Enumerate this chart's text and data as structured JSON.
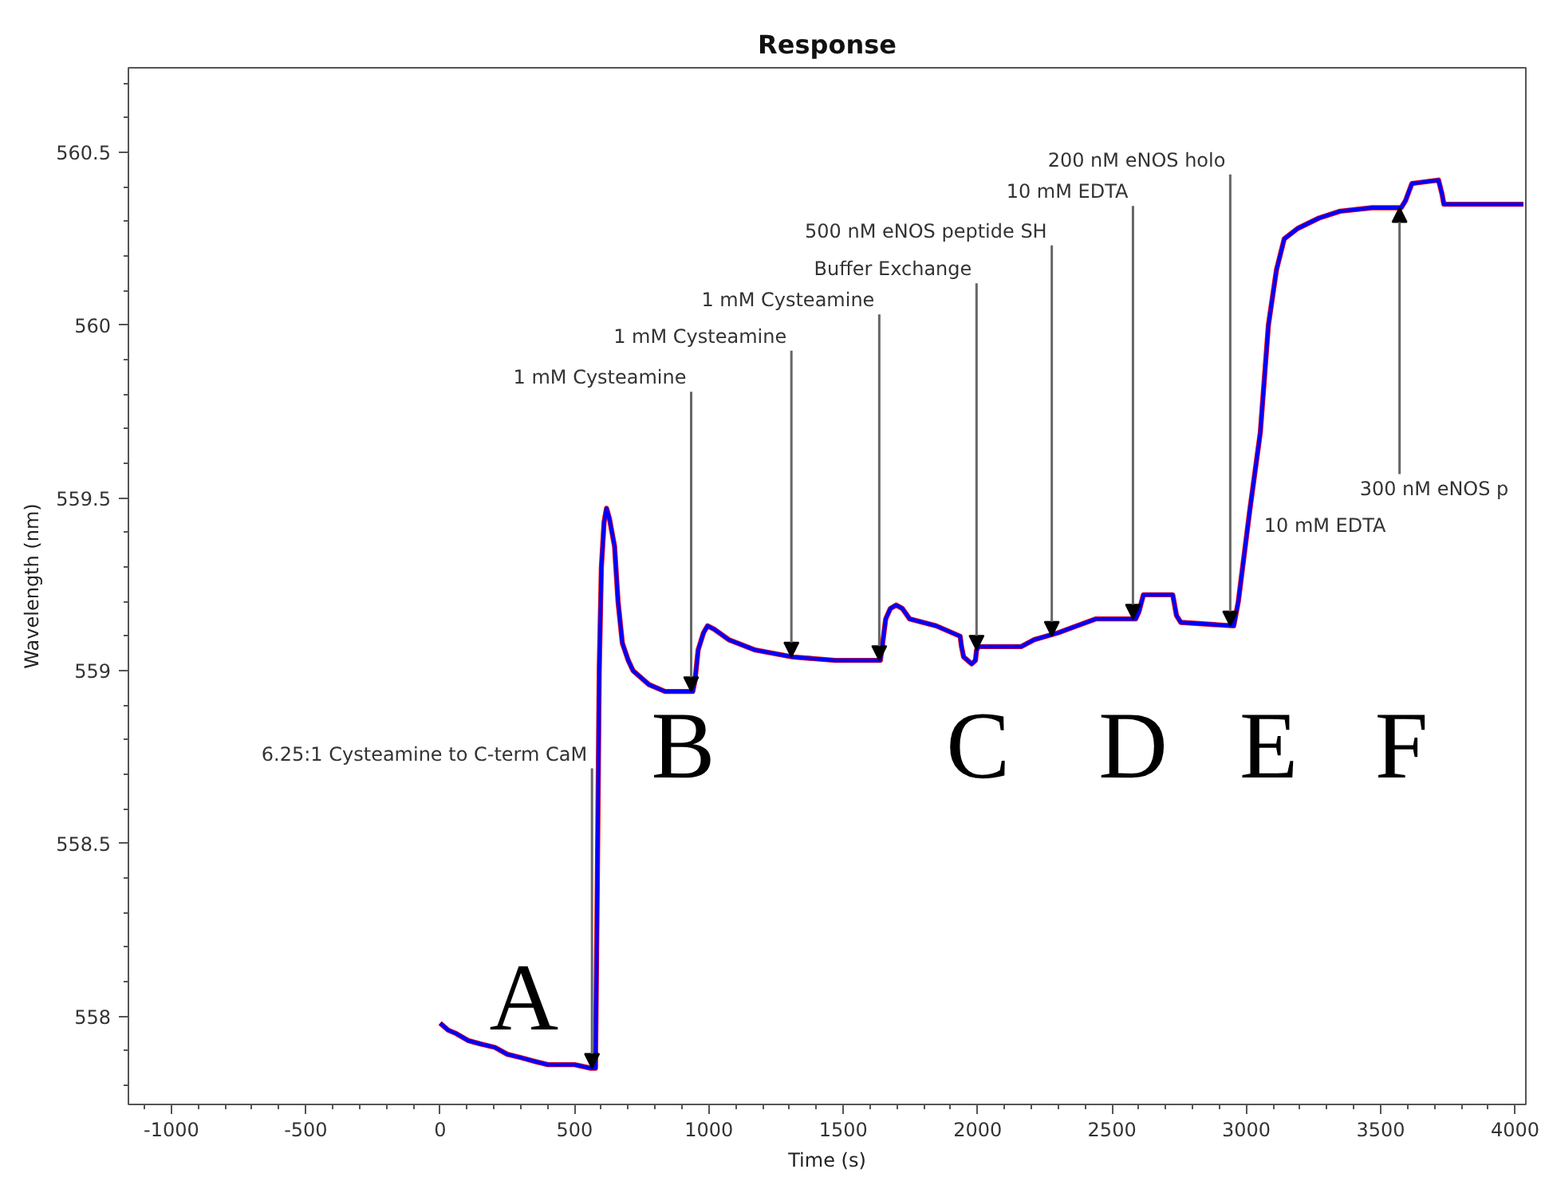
{
  "chart_data": {
    "type": "line",
    "title": "Response",
    "xlabel": "Time (s)",
    "ylabel": "Wavelength (nm)",
    "x": [
      0,
      30,
      60,
      104,
      150,
      204,
      250,
      303,
      350,
      401,
      500,
      560,
      578,
      585,
      592,
      600,
      610,
      619,
      630,
      649,
      662,
      678,
      700,
      718,
      777,
      837,
      940,
      948,
      960,
      980,
      995,
      1020,
      1074,
      1173,
      1312,
      1470,
      1638,
      1645,
      1658,
      1675,
      1697,
      1720,
      1747,
      1846,
      1935,
      1940,
      1948,
      1978,
      1992,
      1996,
      2004,
      2162,
      2211,
      2300,
      2370,
      2439,
      2588,
      2600,
      2617,
      2726,
      2740,
      2756,
      2953,
      2970,
      3012,
      3052,
      3082,
      3112,
      3141,
      3191,
      3270,
      3349,
      3468,
      3576,
      3592,
      3616,
      3715,
      3728,
      3735,
      3900,
      4031
    ],
    "series": [
      {
        "color": "#ff0000",
        "values": [
          557.98,
          557.96,
          557.95,
          557.93,
          557.92,
          557.91,
          557.89,
          557.88,
          557.87,
          557.86,
          557.86,
          557.85,
          557.85,
          558.4,
          559.0,
          559.3,
          559.43,
          559.47,
          559.44,
          559.36,
          559.2,
          559.08,
          559.03,
          559.0,
          558.96,
          558.94,
          558.94,
          558.97,
          559.06,
          559.11,
          559.13,
          559.12,
          559.09,
          559.06,
          559.04,
          559.03,
          559.03,
          559.07,
          559.15,
          559.18,
          559.19,
          559.18,
          559.15,
          559.13,
          559.1,
          559.07,
          559.04,
          559.02,
          559.03,
          559.06,
          559.07,
          559.07,
          559.09,
          559.11,
          559.13,
          559.15,
          559.15,
          559.17,
          559.22,
          559.22,
          559.16,
          559.14,
          559.13,
          559.2,
          559.46,
          559.69,
          560.0,
          560.16,
          560.25,
          560.28,
          560.31,
          560.33,
          560.34,
          560.34,
          560.36,
          560.41,
          560.42,
          560.38,
          560.35,
          560.35,
          560.35
        ]
      },
      {
        "color": "#0000ff",
        "values": [
          557.98,
          557.96,
          557.95,
          557.93,
          557.92,
          557.91,
          557.89,
          557.88,
          557.87,
          557.86,
          557.86,
          557.85,
          557.85,
          558.4,
          559.0,
          559.3,
          559.43,
          559.47,
          559.44,
          559.36,
          559.2,
          559.08,
          559.03,
          559.0,
          558.96,
          558.94,
          558.94,
          558.97,
          559.06,
          559.11,
          559.13,
          559.12,
          559.09,
          559.06,
          559.04,
          559.03,
          559.03,
          559.07,
          559.15,
          559.18,
          559.19,
          559.18,
          559.15,
          559.13,
          559.1,
          559.07,
          559.04,
          559.02,
          559.03,
          559.06,
          559.07,
          559.07,
          559.09,
          559.11,
          559.13,
          559.15,
          559.15,
          559.17,
          559.22,
          559.22,
          559.16,
          559.14,
          559.13,
          559.2,
          559.46,
          559.69,
          560.0,
          560.16,
          560.25,
          560.28,
          560.31,
          560.33,
          560.34,
          560.34,
          560.36,
          560.41,
          560.42,
          560.38,
          560.35,
          560.35,
          560.35
        ]
      }
    ],
    "xlim": [
      -1160,
      4040
    ],
    "ylim": [
      557.745,
      560.745
    ],
    "xticks": [
      {
        "value": -1100,
        "label": null
      },
      -1000,
      {
        "value": -900,
        "label": null
      },
      {
        "value": -800,
        "label": null
      },
      {
        "value": -700,
        "label": null
      },
      {
        "value": -600,
        "label": null
      },
      -500,
      {
        "value": -400,
        "label": null
      },
      {
        "value": -300,
        "label": null
      },
      {
        "value": -200,
        "label": null
      },
      {
        "value": -100,
        "label": null
      },
      0,
      {
        "value": 100,
        "label": null
      },
      {
        "value": 200,
        "label": null
      },
      {
        "value": 300,
        "label": null
      },
      {
        "value": 400,
        "label": null
      },
      500,
      {
        "value": 600,
        "label": null
      },
      {
        "value": 700,
        "label": null
      },
      {
        "value": 800,
        "label": null
      },
      {
        "value": 900,
        "label": null
      },
      1000,
      {
        "value": 1100,
        "label": null
      },
      {
        "value": 1200,
        "label": null
      },
      {
        "value": 1300,
        "label": null
      },
      {
        "value": 1400,
        "label": null
      },
      1500,
      {
        "value": 1600,
        "label": null
      },
      {
        "value": 1700,
        "label": null
      },
      {
        "value": 1800,
        "label": null
      },
      {
        "value": 1900,
        "label": null
      },
      2000,
      {
        "value": 2100,
        "label": null
      },
      {
        "value": 2200,
        "label": null
      },
      {
        "value": 2300,
        "label": null
      },
      {
        "value": 2400,
        "label": null
      },
      2500,
      {
        "value": 2600,
        "label": null
      },
      {
        "value": 2700,
        "label": null
      },
      {
        "value": 2800,
        "label": null
      },
      {
        "value": 2900,
        "label": null
      },
      3000,
      {
        "value": 3100,
        "label": null
      },
      {
        "value": 3200,
        "label": null
      },
      {
        "value": 3300,
        "label": null
      },
      {
        "value": 3400,
        "label": null
      },
      3500,
      {
        "value": 3600,
        "label": null
      },
      {
        "value": 3700,
        "label": null
      },
      {
        "value": 3800,
        "label": null
      },
      {
        "value": 3900,
        "label": null
      },
      4000
    ],
    "yticks": [
      {
        "value": 557.8,
        "label": null
      },
      {
        "value": 557.9,
        "label": null
      },
      558,
      {
        "value": 558.1,
        "label": null
      },
      {
        "value": 558.2,
        "label": null
      },
      {
        "value": 558.3,
        "label": null
      },
      {
        "value": 558.4,
        "label": null
      },
      558.5,
      {
        "value": 558.6,
        "label": null
      },
      {
        "value": 558.7,
        "label": null
      },
      {
        "value": 558.8,
        "label": null
      },
      {
        "value": 558.9,
        "label": null
      },
      559,
      {
        "value": 559.1,
        "label": null
      },
      {
        "value": 559.2,
        "label": null
      },
      {
        "value": 559.3,
        "label": null
      },
      {
        "value": 559.4,
        "label": null
      },
      559.5,
      {
        "value": 559.6,
        "label": null
      },
      {
        "value": 559.7,
        "label": null
      },
      {
        "value": 559.8,
        "label": null
      },
      {
        "value": 559.9,
        "label": null
      },
      560,
      {
        "value": 560.1,
        "label": null
      },
      {
        "value": 560.2,
        "label": null
      },
      {
        "value": 560.3,
        "label": null
      },
      {
        "value": 560.4,
        "label": null
      },
      560.5,
      {
        "value": 560.6,
        "label": null
      },
      {
        "value": 560.7,
        "label": null
      }
    ],
    "grid": false,
    "line_style": "solid",
    "annotations": [
      {
        "text": "6.25:1 Cysteamine to C-term CaM",
        "x": 565,
        "y": 557.85
      },
      {
        "text": "1 mM Cysteamine",
        "x": 934,
        "y": 558.94
      },
      {
        "text": "1 mM Cysteamine",
        "x": 1307,
        "y": 559.04
      },
      {
        "text": "1 mM Cysteamine",
        "x": 1634,
        "y": 559.03
      },
      {
        "text": "Buffer Exchange",
        "x": 1996,
        "y": 559.06
      },
      {
        "text": "500 nM eNOS peptide SH",
        "x": 2276,
        "y": 559.1
      },
      {
        "text": "10 mM EDTA",
        "x": 2578,
        "y": 559.15
      },
      {
        "text": "200 nM eNOS holo",
        "x": 2940,
        "y": 559.13
      },
      {
        "text": "300 nM eNOS p",
        "x": 3570,
        "y": 560.34
      },
      {
        "text": "10 mM EDTA",
        "x": 3030,
        "y": 559.42
      },
      "A",
      "B",
      "C",
      "D",
      "E",
      "F"
    ]
  }
}
